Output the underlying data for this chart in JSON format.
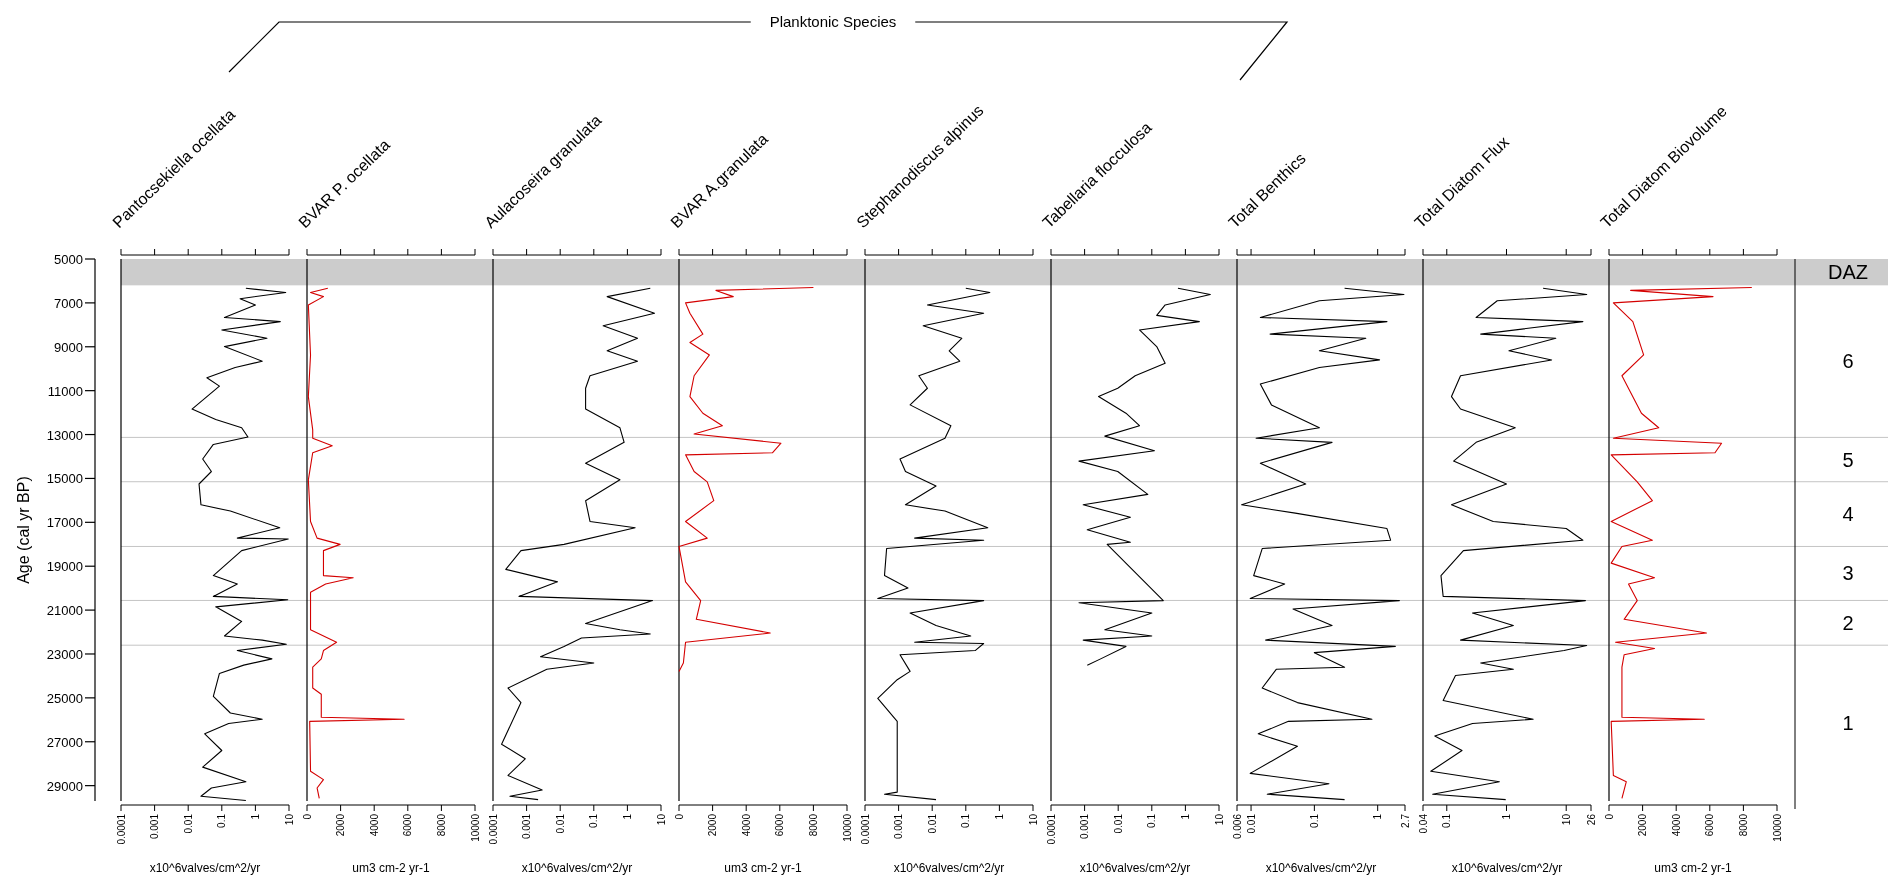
{
  "chart_data": [
    {
      "type": "line",
      "orientation": "horizontal",
      "title": "Pantocsekiella ocellata",
      "xlabel": "x10^6valves/cm^2/yr",
      "ylabel": "Age (cal yr BP)",
      "annotations": [
        "Planktonic Species"
      ],
      "log": "x",
      "xlim": [
        0.0001,
        10
      ],
      "xticks": [
        0.0001,
        0.001,
        0.01,
        0.1,
        1,
        10
      ],
      "ylim": [
        29700,
        5000
      ],
      "yticks": [
        5000,
        7000,
        9000,
        11000,
        13000,
        15000,
        17000,
        19000,
        21000,
        23000,
        25000,
        27000,
        29000
      ],
      "ref_lines": [
        {
          "axis": "y",
          "value": 13130
        },
        {
          "axis": "y",
          "value": 15150
        },
        {
          "axis": "y",
          "value": 18100
        },
        {
          "axis": "y",
          "value": 20560
        },
        {
          "axis": "y",
          "value": 22600
        }
      ],
      "bands": [
        {
          "axis": "y",
          "from": 5000,
          "to": 6200,
          "color": "#cccccc"
        }
      ],
      "series": [
        {
          "color": "#000000",
          "x": [
            6336,
            6525,
            6810,
            7095,
            7664,
            7854,
            8233,
            8613,
            8992,
            9656,
            9941,
            10415,
            10795,
            11838,
            12313,
            12692,
            13110,
            13451,
            14115,
            14684,
            15254,
            16203,
            16487,
            17246,
            17720,
            17758,
            18290,
            19428,
            19808,
            20377,
            20529,
            20852,
            21516,
            22180,
            22370,
            22559,
            22844,
            23223,
            23508,
            23888,
            24931,
            25690,
            25975,
            26165,
            26639,
            27398,
            28157,
            28821,
            29106,
            29485,
            29675
          ],
          "values": [
            0.52,
            8,
            0.35,
            1,
            0.12,
            5.5,
            0.1,
            2.2,
            0.12,
            1.6,
            0.25,
            0.036,
            0.085,
            0.013,
            0.066,
            0.39,
            0.6,
            0.056,
            0.027,
            0.049,
            0.021,
            0.024,
            0.18,
            5.3,
            0.29,
            9.5,
            0.39,
            0.056,
            0.29,
            0.056,
            9.2,
            0.066,
            0.39,
            0.12,
            1.6,
            8.3,
            0.29,
            3.1,
            0.45,
            0.085,
            0.056,
            0.18,
            1.6,
            0.16,
            0.031,
            0.1,
            0.027,
            0.52,
            0.049,
            0.024,
            0.52
          ]
        }
      ]
    },
    {
      "type": "line",
      "orientation": "horizontal",
      "title": "BVAR P. ocellata",
      "xlabel": "um3 cm-2 yr-1",
      "tick_labels": "x",
      "xlim": [
        0,
        10000
      ],
      "xticks": [
        0,
        2000,
        4000,
        6000,
        8000,
        10000
      ],
      "ylim": [
        29700,
        5000
      ],
      "ref_lines": [
        {
          "axis": "y",
          "value": 13130
        },
        {
          "axis": "y",
          "value": 15150
        },
        {
          "axis": "y",
          "value": 18100
        },
        {
          "axis": "y",
          "value": 20560
        },
        {
          "axis": "y",
          "value": 22600
        }
      ],
      "bands": [
        {
          "axis": "y",
          "from": 5000,
          "to": 6200,
          "color": "#cccccc"
        }
      ],
      "series": [
        {
          "color": "#d40000",
          "x": [
            6336,
            6525,
            6715,
            7095,
            9372,
            11269,
            12787,
            13166,
            13508,
            13830,
            15064,
            16962,
            17720,
            18005,
            18290,
            19428,
            19523,
            19808,
            20187,
            20757,
            21895,
            22465,
            22844,
            23223,
            23603,
            24552,
            24837,
            25880,
            25975,
            26070,
            28347,
            28726,
            29106,
            29580
          ],
          "values": [
            1240,
            210,
            980,
            80,
            210,
            80,
            340,
            340,
            1500,
            340,
            80,
            210,
            600,
            1970,
            980,
            980,
            2750,
            1110,
            210,
            210,
            210,
            1760,
            980,
            850,
            340,
            340,
            850,
            850,
            5780,
            160,
            210,
            980,
            600,
            730
          ]
        }
      ]
    },
    {
      "type": "line",
      "orientation": "horizontal",
      "title": "Aulacoseira granulata",
      "xlabel": "x10^6valves/cm^2/yr",
      "tick_labels": "x",
      "log": "x",
      "xlim": [
        0.0001,
        10
      ],
      "xticks": [
        0.0001,
        0.001,
        0.01,
        0.1,
        1,
        10
      ],
      "ylim": [
        29700,
        5000
      ],
      "ref_lines": [
        {
          "axis": "y",
          "value": 13130
        },
        {
          "axis": "y",
          "value": 15150
        },
        {
          "axis": "y",
          "value": 18100
        },
        {
          "axis": "y",
          "value": 20560
        },
        {
          "axis": "y",
          "value": 22600
        }
      ],
      "bands": [
        {
          "axis": "y",
          "from": 5000,
          "to": 6200,
          "color": "#cccccc"
        }
      ],
      "series": [
        {
          "color": "#000000",
          "x": [
            6336,
            6715,
            7474,
            8043,
            8613,
            9182,
            9656,
            10320,
            10890,
            11838,
            12692,
            13356,
            14305,
            15064,
            16013,
            16962,
            17246,
            18005,
            18290,
            19144,
            19713,
            20377,
            20567,
            21611,
            21896,
            22086,
            22275,
            22654,
            23129,
            23413,
            23698,
            24552,
            25216,
            27114,
            27777,
            28536,
            29200,
            29485,
            29637
          ],
          "values": [
            4.8,
            0.25,
            6.4,
            0.19,
            2,
            0.25,
            2,
            0.077,
            0.057,
            0.057,
            0.6,
            0.8,
            0.057,
            0.6,
            0.057,
            0.077,
            1.7,
            0.013,
            0.00068,
            0.00024,
            0.0083,
            0.00059,
            5.6,
            0.057,
            0.6,
            4.8,
            0.043,
            0.013,
            0.0026,
            0.1,
            0.004,
            0.00028,
            0.00068,
            0.00018,
            0.00091,
            0.00028,
            0.0029,
            0.00032,
            0.0022
          ]
        }
      ]
    },
    {
      "type": "line",
      "orientation": "horizontal",
      "title": "BVAR A.granulata",
      "xlabel": "um3 cm-2 yr-1",
      "tick_labels": "x",
      "xlim": [
        0,
        10000
      ],
      "xticks": [
        0,
        2000,
        4000,
        6000,
        8000,
        10000
      ],
      "ylim": [
        29700,
        5000
      ],
      "ref_lines": [
        {
          "axis": "y",
          "value": 13130
        },
        {
          "axis": "y",
          "value": 15150
        },
        {
          "axis": "y",
          "value": 18100
        },
        {
          "axis": "y",
          "value": 20560
        },
        {
          "axis": "y",
          "value": 22600
        }
      ],
      "bands": [
        {
          "axis": "y",
          "from": 5000,
          "to": 6200,
          "color": "#cccccc"
        }
      ],
      "series": [
        {
          "color": "#d40000",
          "x": [
            6298,
            6431,
            6715,
            7000,
            7474,
            8423,
            8802,
            9372,
            10320,
            11269,
            12028,
            12597,
            12977,
            13394,
            13830,
            13925,
            14684,
            15159,
            16013,
            16962,
            17720,
            18100,
            19713,
            20567,
            21421,
            22047,
            22465,
            23413,
            23793
          ],
          "values": [
            8000,
            2200,
            3230,
            390,
            650,
            1420,
            650,
            1810,
            900,
            650,
            1420,
            2580,
            900,
            6070,
            5560,
            390,
            900,
            1680,
            2070,
            390,
            1680,
            0,
            390,
            1290,
            1030,
            5430,
            390,
            260,
            0
          ]
        }
      ]
    },
    {
      "type": "line",
      "orientation": "horizontal",
      "title": "Stephanodiscus alpinus",
      "xlabel": "x10^6valves/cm^2/yr",
      "tick_labels": "x",
      "log": "x",
      "xlim": [
        0.0001,
        10
      ],
      "xticks": [
        0.0001,
        0.001,
        0.01,
        0.1,
        1,
        10
      ],
      "ylim": [
        29700,
        5000
      ],
      "ref_lines": [
        {
          "axis": "y",
          "value": 13130
        },
        {
          "axis": "y",
          "value": 15150
        },
        {
          "axis": "y",
          "value": 18100
        },
        {
          "axis": "y",
          "value": 20560
        },
        {
          "axis": "y",
          "value": 22600
        }
      ],
      "bands": [
        {
          "axis": "y",
          "from": 5000,
          "to": 6200,
          "color": "#cccccc"
        }
      ],
      "series": [
        {
          "color": "#000000",
          "x": [
            6336,
            6525,
            7095,
            7474,
            8043,
            8613,
            9182,
            9656,
            10320,
            10890,
            11648,
            12597,
            13166,
            14115,
            14684,
            15348,
            16203,
            16487,
            17246,
            17720,
            17815,
            18195,
            19428,
            19997,
            20471,
            20567,
            21136,
            21706,
            22180,
            22465,
            22522,
            22844,
            23034,
            23793,
            24172,
            25026,
            26070,
            29296,
            29391,
            29637
          ],
          "values": [
            0.1,
            0.52,
            0.0072,
            0.34,
            0.0054,
            0.076,
            0.032,
            0.066,
            0.004,
            0.0072,
            0.0022,
            0.036,
            0.024,
            0.0011,
            0.0016,
            0.013,
            0.0016,
            0.024,
            0.45,
            0.003,
            0.34,
            0.00044,
            0.00038,
            0.0019,
            0.00024,
            0.34,
            0.0022,
            0.013,
            0.14,
            0.003,
            0.34,
            0.19,
            0.0011,
            0.0022,
            0.00091,
            0.00024,
            0.00091,
            0.00091,
            0.00038,
            0.013
          ]
        }
      ]
    },
    {
      "type": "line",
      "orientation": "horizontal",
      "title": "Tabellaria flocculosa",
      "xlabel": "x10^6valves/cm^2/yr",
      "tick_labels": "x",
      "log": "x",
      "xlim": [
        0.0001,
        10
      ],
      "xticks": [
        0.0001,
        0.001,
        0.01,
        0.1,
        1,
        10
      ],
      "ylim": [
        29700,
        5000
      ],
      "ref_lines": [
        {
          "axis": "y",
          "value": 13130
        },
        {
          "axis": "y",
          "value": 15150
        },
        {
          "axis": "y",
          "value": 18100
        },
        {
          "axis": "y",
          "value": 20560
        },
        {
          "axis": "y",
          "value": 22600
        }
      ],
      "bands": [
        {
          "axis": "y",
          "from": 5000,
          "to": 6200,
          "color": "#cccccc"
        }
      ],
      "series": [
        {
          "color": "#000000",
          "x": [
            6336,
            6620,
            7095,
            7569,
            7854,
            8233,
            8992,
            9751,
            10320,
            10890,
            11269,
            12028,
            12597,
            13071,
            13735,
            14210,
            14684,
            15727,
            16203,
            16772,
            17341,
            17910,
            18005,
            20567,
            20662,
            21136,
            21896,
            22180,
            22370,
            22654,
            23223,
            23508
          ],
          "values": [
            0.6,
            5.5,
            0.25,
            0.14,
            2.6,
            0.043,
            0.14,
            0.25,
            0.032,
            0.0097,
            0.0026,
            0.017,
            0.043,
            0.004,
            0.12,
            0.00068,
            0.0097,
            0.076,
            0.00091,
            0.023,
            0.0012,
            0.023,
            0.0047,
            0.22,
            0.00068,
            0.1,
            0.004,
            0.1,
            0.00091,
            0.017,
            0.003,
            0.0012
          ]
        }
      ]
    },
    {
      "type": "line",
      "orientation": "horizontal",
      "title": "Total Benthics",
      "xlabel": "x10^6valves/cm^2/yr",
      "tick_labels": "x",
      "log": "x",
      "xlim": [
        0.006,
        2.7
      ],
      "xticks": [
        0.006,
        0.01,
        0.1,
        1,
        2.7
      ],
      "ylim": [
        29700,
        5000
      ],
      "ref_lines": [
        {
          "axis": "y",
          "value": 13130
        },
        {
          "axis": "y",
          "value": 15150
        },
        {
          "axis": "y",
          "value": 18100
        },
        {
          "axis": "y",
          "value": 20560
        },
        {
          "axis": "y",
          "value": 22600
        }
      ],
      "bands": [
        {
          "axis": "y",
          "from": 5000,
          "to": 6200,
          "color": "#cccccc"
        }
      ],
      "series": [
        {
          "color": "#000000",
          "x": [
            6336,
            6620,
            6905,
            7664,
            7854,
            8423,
            8613,
            9182,
            9599,
            9941,
            10700,
            11648,
            12692,
            13166,
            13356,
            14305,
            15254,
            16203,
            16582,
            17284,
            17815,
            18195,
            19428,
            19808,
            20471,
            20567,
            20947,
            21706,
            22370,
            22654,
            22939,
            23603,
            23698,
            24552,
            25216,
            25975,
            26070,
            26639,
            27208,
            28442,
            28916,
            29391,
            29637
          ],
          "values": [
            0.3,
            2.6,
            0.12,
            0.014,
            1.4,
            0.02,
            0.65,
            0.12,
            1.07,
            0.12,
            0.014,
            0.021,
            0.12,
            0.012,
            0.19,
            0.014,
            0.073,
            0.0071,
            0.05,
            1.4,
            1.6,
            0.015,
            0.011,
            0.034,
            0.0097,
            2.2,
            0.046,
            0.19,
            0.017,
            1.9,
            0.1,
            0.3,
            0.025,
            0.015,
            0.054,
            0.81,
            0.039,
            0.013,
            0.054,
            0.0097,
            0.17,
            0.018,
            0.3
          ]
        }
      ]
    },
    {
      "type": "line",
      "orientation": "horizontal",
      "title": "Total Diatom Flux",
      "xlabel": "x10^6valves/cm^2/yr",
      "tick_labels": "x",
      "log": "x",
      "xlim": [
        0.04,
        26
      ],
      "xticks": [
        0.04,
        0.1,
        1,
        10,
        26
      ],
      "ylim": [
        29700,
        5000
      ],
      "ref_lines": [
        {
          "axis": "y",
          "value": 13130
        },
        {
          "axis": "y",
          "value": 15150
        },
        {
          "axis": "y",
          "value": 18100
        },
        {
          "axis": "y",
          "value": 20560
        },
        {
          "axis": "y",
          "value": 22600
        }
      ],
      "bands": [
        {
          "axis": "y",
          "from": 5000,
          "to": 6200,
          "color": "#cccccc"
        }
      ],
      "series": [
        {
          "color": "#000000",
          "x": [
            6336,
            6620,
            6905,
            7664,
            7854,
            8423,
            8613,
            9182,
            9599,
            10320,
            11269,
            11838,
            12692,
            13356,
            14210,
            15254,
            16203,
            16962,
            17284,
            17815,
            18290,
            19428,
            20377,
            20567,
            21136,
            21706,
            22370,
            22616,
            22844,
            23413,
            23698,
            23983,
            25121,
            25975,
            26165,
            26734,
            27398,
            28347,
            28821,
            29391,
            29637
          ],
          "values": [
            4.1,
            22,
            0.7,
            0.31,
            19,
            0.37,
            6.7,
            1.1,
            5.7,
            0.17,
            0.12,
            0.17,
            1.4,
            0.31,
            0.13,
            1,
            0.12,
            0.6,
            10,
            19,
            0.19,
            0.08,
            0.087,
            21,
            0.27,
            1.3,
            0.17,
            22,
            9.2,
            0.37,
            1.3,
            0.14,
            0.087,
            2.8,
            0.27,
            0.063,
            0.18,
            0.054,
            0.76,
            0.058,
            0.97
          ]
        }
      ]
    },
    {
      "type": "line",
      "orientation": "horizontal",
      "title": "Total Diatom Biovolume",
      "xlabel": "um3 cm-2 yr-1",
      "tick_labels": "x",
      "xlim": [
        0,
        10000
      ],
      "xticks": [
        0,
        2000,
        4000,
        6000,
        8000,
        10000
      ],
      "ylim": [
        29700,
        5000
      ],
      "ref_lines": [
        {
          "axis": "y",
          "value": 13130
        },
        {
          "axis": "y",
          "value": 15150
        },
        {
          "axis": "y",
          "value": 18100
        },
        {
          "axis": "y",
          "value": 20560
        },
        {
          "axis": "y",
          "value": 22600
        }
      ],
      "bands": [
        {
          "axis": "y",
          "from": 5000,
          "to": 6200,
          "color": "#cccccc",
          "label": "DAZ"
        }
      ],
      "annotations": [
        "6",
        "5",
        "4",
        "3",
        "2",
        "1"
      ],
      "series": [
        {
          "color": "#d40000",
          "x": [
            6298,
            6431,
            6715,
            7000,
            7854,
            9372,
            10320,
            12028,
            12692,
            13166,
            13394,
            13830,
            13925,
            15159,
            16013,
            16962,
            17815,
            18100,
            18859,
            19523,
            19808,
            20567,
            21421,
            22047,
            22465,
            22749,
            23034,
            23603,
            24552,
            25880,
            25975,
            26070,
            28536,
            28821,
            29580
          ],
          "values": [
            8500,
            1290,
            6190,
            260,
            1420,
            2060,
            770,
            1930,
            2960,
            260,
            6700,
            6310,
            130,
            1680,
            2580,
            130,
            2580,
            770,
            130,
            2710,
            1160,
            1680,
            900,
            5800,
            390,
            2710,
            900,
            770,
            770,
            770,
            5670,
            130,
            260,
            1030,
            770
          ]
        }
      ]
    }
  ]
}
